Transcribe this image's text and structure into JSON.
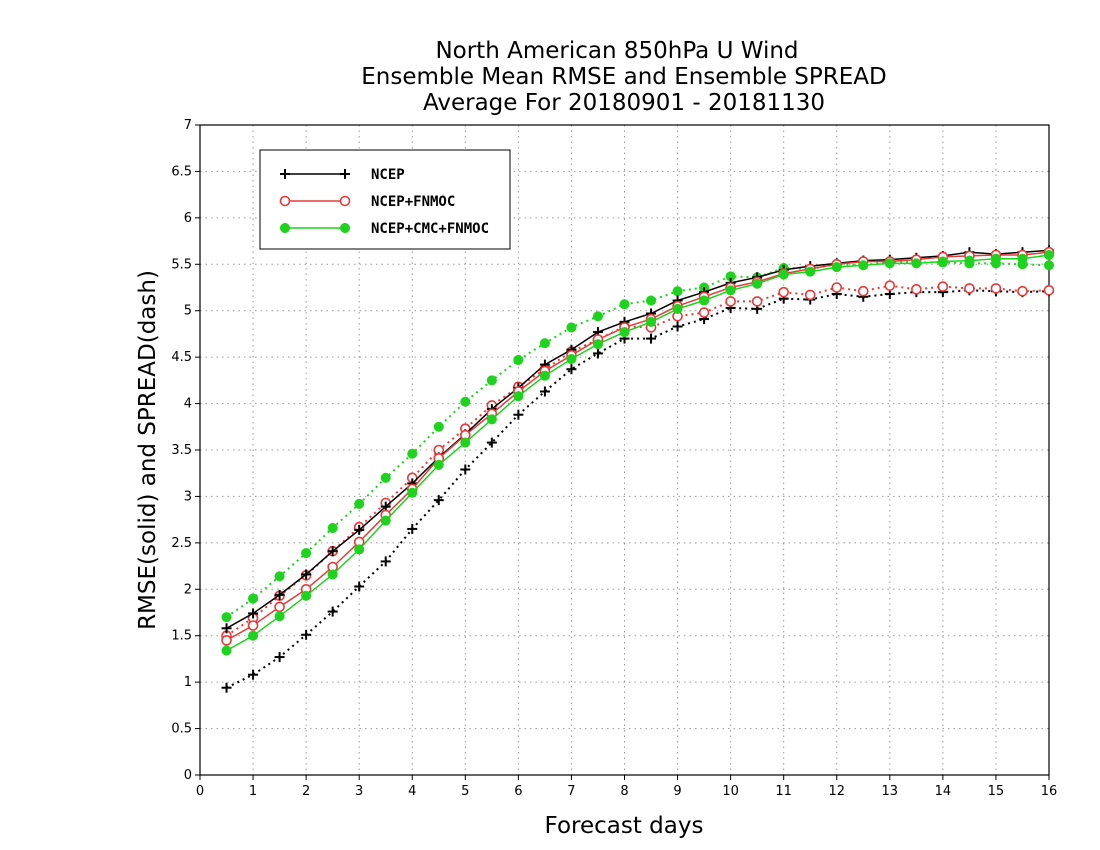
{
  "chart_data": {
    "type": "line",
    "title_lines": [
      "North American 850hPa U Wind",
      "Ensemble Mean RMSE and Ensemble SPREAD",
      "Average For 20180901 - 20181130"
    ],
    "xlabel": "Forecast days",
    "ylabel": "RMSE(solid) and SPREAD(dash)",
    "xlim": [
      0,
      16
    ],
    "ylim": [
      0,
      7
    ],
    "xticks": [
      "0",
      "1",
      "2",
      "3",
      "4",
      "5",
      "6",
      "7",
      "8",
      "9",
      "10",
      "11",
      "12",
      "13",
      "14",
      "15",
      "16"
    ],
    "yticks": [
      "0",
      "0.5",
      "1",
      "1.5",
      "2",
      "2.5",
      "3",
      "3.5",
      "4",
      "4.5",
      "5",
      "5.5",
      "6",
      "6.5",
      "7"
    ],
    "grid": "dotted",
    "legend_position": "top-left",
    "x": [
      0.5,
      1,
      1.5,
      2,
      2.5,
      3,
      3.5,
      4,
      4.5,
      5,
      5.5,
      6,
      6.5,
      7,
      7.5,
      8,
      8.5,
      9,
      9.5,
      10,
      10.5,
      11,
      11.5,
      12,
      12.5,
      13,
      13.5,
      14,
      14.5,
      15,
      15.5,
      16
    ],
    "series": [
      {
        "name": "NCEP",
        "color": "#000000",
        "marker": "plus",
        "rmse": [
          1.58,
          1.74,
          1.94,
          2.16,
          2.41,
          2.64,
          2.89,
          3.14,
          3.42,
          3.67,
          3.94,
          4.17,
          4.42,
          4.58,
          4.77,
          4.88,
          4.97,
          5.11,
          5.2,
          5.3,
          5.36,
          5.44,
          5.48,
          5.51,
          5.54,
          5.55,
          5.57,
          5.59,
          5.63,
          5.61,
          5.63,
          5.65
        ],
        "spread": [
          0.94,
          1.08,
          1.27,
          1.51,
          1.76,
          2.03,
          2.3,
          2.65,
          2.96,
          3.29,
          3.58,
          3.88,
          4.13,
          4.37,
          4.54,
          4.7,
          4.7,
          4.83,
          4.91,
          5.03,
          5.02,
          5.13,
          5.12,
          5.18,
          5.15,
          5.18,
          5.2,
          5.2,
          5.22,
          5.21,
          5.2,
          5.21
        ]
      },
      {
        "name": "NCEP+FNMOC",
        "color": "#e8393a",
        "marker": "open-circle",
        "rmse": [
          1.45,
          1.61,
          1.81,
          2.0,
          2.24,
          2.51,
          2.8,
          3.08,
          3.41,
          3.66,
          3.89,
          4.13,
          4.35,
          4.52,
          4.69,
          4.82,
          4.91,
          5.05,
          5.15,
          5.25,
          5.31,
          5.4,
          5.45,
          5.5,
          5.53,
          5.53,
          5.55,
          5.58,
          5.59,
          5.6,
          5.6,
          5.63
        ],
        "spread": [
          1.5,
          1.69,
          1.93,
          2.15,
          2.41,
          2.67,
          2.93,
          3.2,
          3.5,
          3.73,
          3.98,
          4.18,
          4.37,
          4.56,
          4.69,
          4.83,
          4.82,
          4.94,
          4.98,
          5.1,
          5.1,
          5.2,
          5.17,
          5.25,
          5.21,
          5.27,
          5.23,
          5.26,
          5.24,
          5.24,
          5.21,
          5.22
        ]
      },
      {
        "name": "NCEP+CMC+FNMOC",
        "color": "#1ed31e",
        "marker": "filled-circle",
        "rmse": [
          1.34,
          1.5,
          1.71,
          1.93,
          2.16,
          2.43,
          2.74,
          3.04,
          3.34,
          3.58,
          3.83,
          4.08,
          4.3,
          4.48,
          4.64,
          4.77,
          4.88,
          5.02,
          5.11,
          5.22,
          5.29,
          5.39,
          5.42,
          5.47,
          5.49,
          5.51,
          5.51,
          5.53,
          5.54,
          5.56,
          5.56,
          5.6
        ],
        "spread": [
          1.7,
          1.9,
          2.14,
          2.39,
          2.66,
          2.92,
          3.2,
          3.46,
          3.75,
          4.02,
          4.25,
          4.47,
          4.65,
          4.82,
          4.94,
          5.07,
          5.11,
          5.21,
          5.25,
          5.37,
          5.36,
          5.46,
          5.45,
          5.5,
          5.49,
          5.53,
          5.52,
          5.52,
          5.51,
          5.51,
          5.5,
          5.49
        ]
      }
    ]
  }
}
